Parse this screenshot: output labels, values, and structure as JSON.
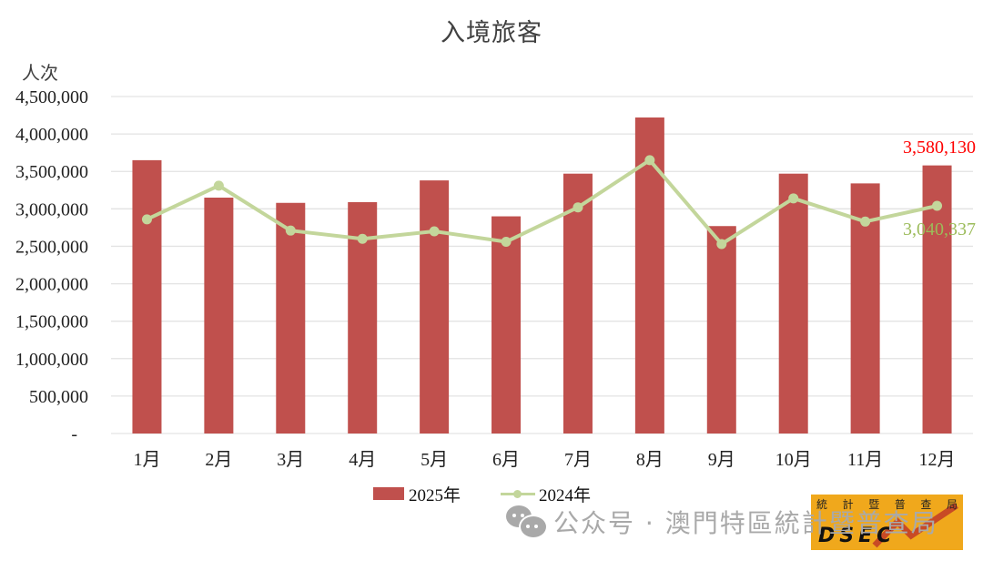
{
  "title": "入境旅客",
  "y_axis_unit": "人次",
  "legend": {
    "bar_label": "2025年",
    "line_label": "2024年"
  },
  "colors": {
    "bar": "#c0504d",
    "line": "#c3d69b",
    "bar_label": "#ff0000",
    "line_label": "#9bbb59",
    "grid": "#e3e3e3",
    "axis_text": "#222222"
  },
  "annotations": {
    "bar_last_value": "3,580,130",
    "line_last_value": "3,040,337"
  },
  "watermark": {
    "icon": "wechat-icon",
    "text": "公众号 · 澳門特區統計暨普查局"
  },
  "logo": {
    "chars": [
      "統",
      "計",
      "暨",
      "普",
      "查",
      "局"
    ],
    "text": "DSEC"
  },
  "chart_data": {
    "type": "bar",
    "title": "入境旅客",
    "xlabel": "",
    "ylabel": "人次",
    "ylim": [
      0,
      4500000
    ],
    "yticks": [
      0,
      500000,
      1000000,
      1500000,
      2000000,
      2500000,
      3000000,
      3500000,
      4000000,
      4500000
    ],
    "ytick_labels": [
      "-",
      "500,000",
      "1,000,000",
      "1,500,000",
      "2,000,000",
      "2,500,000",
      "3,000,000",
      "3,500,000",
      "4,000,000",
      "4,500,000"
    ],
    "grid": true,
    "legend_position": "bottom",
    "categories": [
      "1月",
      "2月",
      "3月",
      "4月",
      "5月",
      "6月",
      "7月",
      "8月",
      "9月",
      "10月",
      "11月",
      "12月"
    ],
    "series": [
      {
        "name": "2025年",
        "type": "bar",
        "values": [
          3650000,
          3150000,
          3080000,
          3090000,
          3380000,
          2900000,
          3470000,
          4220000,
          2770000,
          3470000,
          3340000,
          3580130
        ]
      },
      {
        "name": "2024年",
        "type": "line",
        "values": [
          2860000,
          3310000,
          2710000,
          2600000,
          2700000,
          2560000,
          3020000,
          3650000,
          2530000,
          3140000,
          2830000,
          3040337
        ]
      }
    ],
    "annotations": [
      {
        "series": "2025年",
        "category": "12月",
        "text": "3,580,130"
      },
      {
        "series": "2024年",
        "category": "12月",
        "text": "3,040,337"
      }
    ]
  }
}
